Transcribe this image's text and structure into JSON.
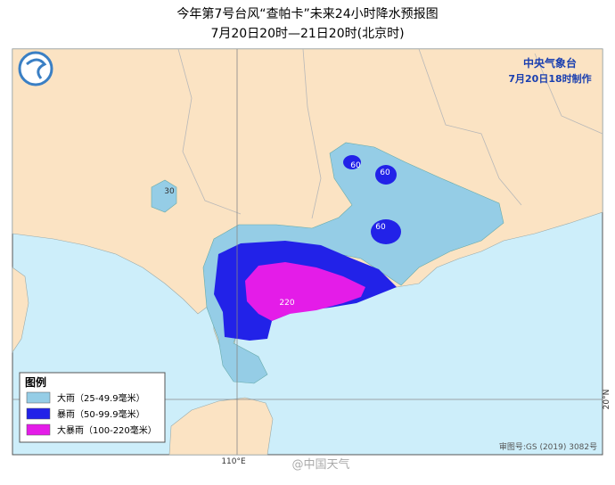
{
  "header": {
    "title": "今年第7号台风“查帕卡”未来24小时降水预报图",
    "subtitle": "7月20日20时—21日20时(北京时)"
  },
  "agency": {
    "name": "中央气象台",
    "issued": "7月20日18时制作"
  },
  "contour_labels": [
    "60",
    "60",
    "60",
    "30",
    "220"
  ],
  "legend": {
    "title": "图例",
    "items": [
      {
        "label": "大雨（25-49.9毫米）",
        "color": "#95cde6"
      },
      {
        "label": "暴雨（50-99.9毫米）",
        "color": "#2222e8"
      },
      {
        "label": "大暴雨（100-220毫米）",
        "color": "#e41ce8"
      }
    ]
  },
  "axes": {
    "longitude": "110°E",
    "latitude": "20°N"
  },
  "footer": {
    "approval": "审图号:GS (2019) 3082号",
    "watermark": "@中国天气"
  }
}
